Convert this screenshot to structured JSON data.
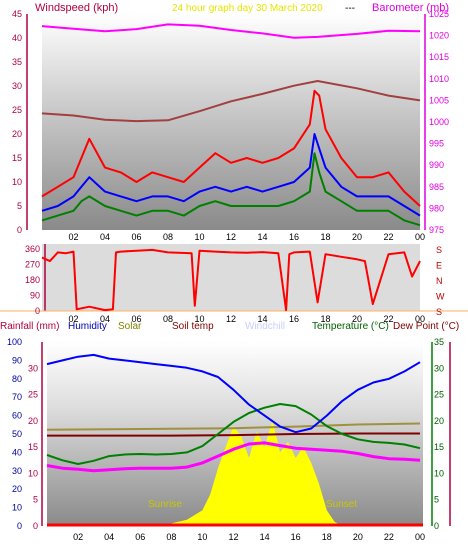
{
  "header": {
    "left_title": "Windspeed (kph)",
    "center_title": "24 hour graph day    30 March 2020",
    "separator": "---",
    "right_title": "Barometer (mb)"
  },
  "colors": {
    "wind_axis": "#b00040",
    "baro_axis": "#e000e0",
    "gust": "#ff0000",
    "avg_wind": "#0000ff",
    "min_wind": "#008000",
    "baro_line": "#ff00ff",
    "indoor_line": "#a04040",
    "direction": "#ff0000",
    "humidity": "#0000ff",
    "temperature": "#008000",
    "dewpoint": "#ff00ff",
    "solar": "#ffff00",
    "soiltemp": "#800000",
    "solar_label": "#a0a000"
  },
  "bottom_header": {
    "rainfall": "Rainfall (mm)",
    "humidity": "Humidity",
    "solar": "Solar",
    "soiltemp": "Soil temp",
    "windchill": "Windchill",
    "temperature": "Temperature (°C)",
    "dewpoint": "Dew Point (°C)"
  },
  "annotations": {
    "sunrise": "Sunrise",
    "sunset": "Sunset"
  },
  "compass": [
    "S",
    "E",
    "N",
    "W",
    "S"
  ],
  "chart_data": [
    {
      "type": "line",
      "x_ticks": [
        "02",
        "04",
        "06",
        "08",
        "10",
        "12",
        "14",
        "16",
        "18",
        "20",
        "22",
        "00"
      ],
      "left_axis": {
        "label": "Windspeed (kph)",
        "ylim": [
          0,
          45
        ],
        "ticks": [
          0,
          5,
          10,
          15,
          20,
          25,
          30,
          35,
          40,
          45
        ]
      },
      "right_axis": {
        "label": "Barometer (mb)",
        "ylim": [
          975,
          1025
        ],
        "ticks": [
          975,
          980,
          985,
          990,
          995,
          1000,
          1005,
          1010,
          1015,
          1020,
          1025
        ]
      },
      "series": [
        {
          "axis": "right",
          "x": [
            0,
            2,
            4,
            6,
            8,
            10,
            12,
            14,
            16,
            17.5,
            20,
            22,
            24
          ],
          "values": [
            1022.2,
            1021.6,
            1021.0,
            1021.5,
            1022.6,
            1022.3,
            1021.3,
            1020.5,
            1019.5,
            1019.7,
            1020.4,
            1021.1,
            1021.0
          ]
        },
        {
          "axis": "right",
          "x": [
            0,
            2,
            4,
            6,
            8,
            10,
            12,
            14,
            16,
            17.5,
            20,
            22,
            24
          ],
          "values": [
            1002.0,
            1001.5,
            1000.5,
            1000.2,
            1000.4,
            1002.5,
            1004.8,
            1006.5,
            1008.4,
            1009.5,
            1007.8,
            1006.1,
            1005.0
          ]
        },
        {
          "x": [
            0,
            1,
            2,
            2.5,
            3,
            4,
            5,
            6,
            7,
            8,
            9,
            10,
            11,
            12,
            13,
            14,
            15,
            16,
            17,
            17.3,
            17.6,
            18,
            19,
            20,
            21,
            22,
            23,
            24
          ],
          "values": [
            7,
            9,
            11,
            15,
            19,
            13,
            12,
            10,
            12,
            11,
            10,
            13,
            16,
            14,
            15,
            14,
            15,
            17,
            22,
            29,
            28,
            21,
            15,
            11,
            11,
            12,
            8,
            5
          ]
        },
        {
          "x": [
            0,
            1,
            2,
            2.5,
            3,
            4,
            5,
            6,
            7,
            8,
            9,
            10,
            11,
            12,
            13,
            14,
            15,
            16,
            17,
            17.3,
            17.6,
            18,
            19,
            20,
            21,
            22,
            23,
            24
          ],
          "values": [
            4,
            5,
            7,
            9,
            11,
            8,
            7,
            6,
            7,
            7,
            6,
            8,
            9,
            8,
            9,
            8,
            9,
            10,
            13,
            20,
            17,
            13,
            9,
            7,
            7,
            7,
            5,
            3
          ]
        },
        {
          "x": [
            0,
            1,
            2,
            2.5,
            3,
            4,
            5,
            6,
            7,
            8,
            9,
            10,
            11,
            12,
            13,
            14,
            15,
            16,
            17,
            17.3,
            17.6,
            18,
            19,
            20,
            21,
            22,
            23,
            24
          ],
          "values": [
            2,
            3,
            4,
            6,
            7,
            5,
            4,
            3,
            4,
            4,
            3,
            5,
            6,
            5,
            5,
            5,
            5,
            6,
            8,
            16,
            12,
            8,
            6,
            4,
            4,
            4,
            2,
            1
          ]
        }
      ]
    },
    {
      "type": "line",
      "x_ticks": [
        "02",
        "04",
        "06",
        "08",
        "10",
        "12",
        "14",
        "16",
        "18",
        "20",
        "22",
        "00"
      ],
      "left_axis": {
        "ylim": [
          0,
          360
        ],
        "ticks": [
          0,
          90,
          180,
          270,
          360
        ]
      },
      "series": [
        {
          "x": [
            0,
            0.5,
            1,
            1.5,
            2,
            2.2,
            3,
            4,
            4.5,
            4.7,
            5,
            6,
            7,
            8,
            9.5,
            9.7,
            10,
            11,
            12,
            13,
            14,
            15,
            15.5,
            15.7,
            16,
            17,
            17.5,
            18,
            19,
            20,
            20.5,
            21,
            22,
            23,
            23.5,
            24
          ],
          "values": [
            310,
            290,
            340,
            335,
            345,
            10,
            25,
            5,
            10,
            340,
            345,
            350,
            355,
            340,
            335,
            30,
            350,
            345,
            340,
            338,
            342,
            335,
            5,
            330,
            340,
            345,
            50,
            330,
            315,
            300,
            290,
            40,
            330,
            340,
            200,
            290
          ]
        }
      ]
    },
    {
      "type": "line",
      "x_ticks": [
        "02",
        "04",
        "06",
        "08",
        "10",
        "12",
        "14",
        "16",
        "18",
        "20",
        "22",
        "00"
      ],
      "left_axis": {
        "label": "Humidity",
        "ylim": [
          0,
          100
        ],
        "ticks": [
          0,
          10,
          20,
          30,
          40,
          50,
          60,
          70,
          80,
          90,
          100
        ]
      },
      "right_axis": {
        "label": "Temperature (°C)",
        "ylim": [
          0,
          35
        ],
        "ticks": [
          0,
          5,
          10,
          15,
          20,
          25,
          30,
          35
        ]
      },
      "series": [
        {
          "x": [
            0,
            1,
            2,
            3,
            4,
            5,
            6,
            7,
            8,
            9,
            10,
            11,
            12,
            13,
            14,
            15,
            16,
            17,
            18,
            19,
            20,
            21,
            22,
            23,
            24
          ],
          "values": [
            88,
            90,
            92,
            93,
            91,
            90,
            89,
            88,
            87,
            86,
            84,
            81,
            74,
            66,
            60,
            54,
            51,
            53,
            60,
            68,
            74,
            78,
            80,
            84,
            89
          ]
        },
        {
          "axis": "right",
          "x": [
            0,
            1,
            2,
            3,
            4,
            5,
            6,
            7,
            8,
            9,
            10,
            11,
            12,
            13,
            14,
            15,
            16,
            17,
            18,
            19,
            20,
            21,
            22,
            23,
            24
          ],
          "values": [
            13.5,
            12.5,
            11.8,
            12.4,
            13.3,
            13.6,
            13.7,
            13.6,
            13.7,
            14.0,
            15.2,
            17.5,
            19.8,
            21.5,
            22.5,
            23.2,
            22.8,
            21.2,
            19.0,
            17.5,
            16.5,
            16.0,
            15.8,
            15.5,
            14.8
          ]
        },
        {
          "axis": "right",
          "x": [
            0,
            1,
            2,
            3,
            4,
            5,
            6,
            7,
            8,
            9,
            10,
            11,
            12,
            13,
            14,
            15,
            16,
            17,
            18,
            19,
            20,
            21,
            22,
            23,
            24
          ],
          "values": [
            11.5,
            11.0,
            10.8,
            10.5,
            10.7,
            10.9,
            11.0,
            11.0,
            11.0,
            11.2,
            12.0,
            13.3,
            14.6,
            15.6,
            15.8,
            15.3,
            14.8,
            14.6,
            14.4,
            14.2,
            13.8,
            13.2,
            12.8,
            12.7,
            12.5
          ]
        },
        {
          "axis": "right",
          "x": [
            0,
            4,
            8,
            12,
            16,
            20,
            24
          ],
          "values": [
            17.2,
            17.2,
            17.2,
            17.3,
            17.5,
            17.6,
            17.6
          ]
        },
        {
          "axis": "right",
          "x": [
            0,
            4,
            8,
            12,
            16,
            20,
            24
          ],
          "values": [
            18.3,
            18.4,
            18.5,
            18.6,
            18.9,
            19.3,
            19.5
          ]
        },
        {
          "axis": "right",
          "x": [
            7.5,
            8,
            9,
            10,
            10.5,
            11,
            11.5,
            12,
            12.5,
            13,
            13.5,
            14,
            14.5,
            15,
            15.5,
            16,
            16.5,
            17,
            17.5,
            18,
            18.5,
            19
          ],
          "values": [
            0,
            0.5,
            1.2,
            3,
            6,
            11,
            15,
            19,
            17,
            13,
            18,
            15,
            20,
            14,
            16,
            13,
            15,
            12,
            8,
            3,
            0.8,
            0
          ]
        }
      ]
    }
  ]
}
